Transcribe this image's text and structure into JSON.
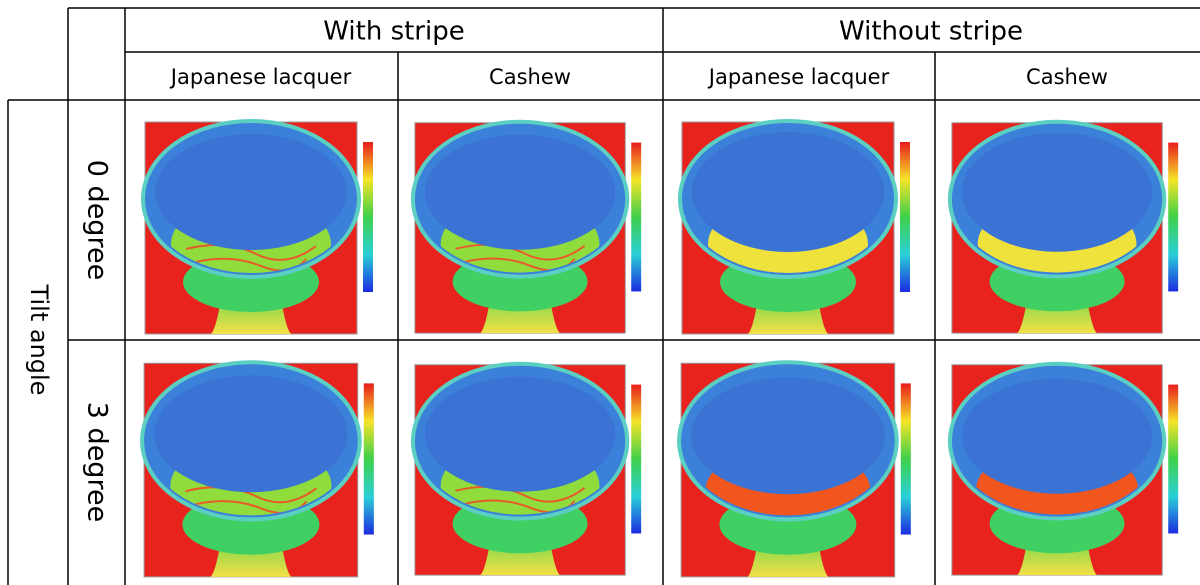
{
  "header": {
    "groups": [
      "With stripe",
      "Without stripe"
    ],
    "materials": [
      "Japanese lacquer",
      "Cashew",
      "Japanese lacquer",
      "Cashew"
    ]
  },
  "rows": {
    "title": "Tilt angle",
    "labels": [
      "0 degree",
      "3 degree"
    ]
  }
}
